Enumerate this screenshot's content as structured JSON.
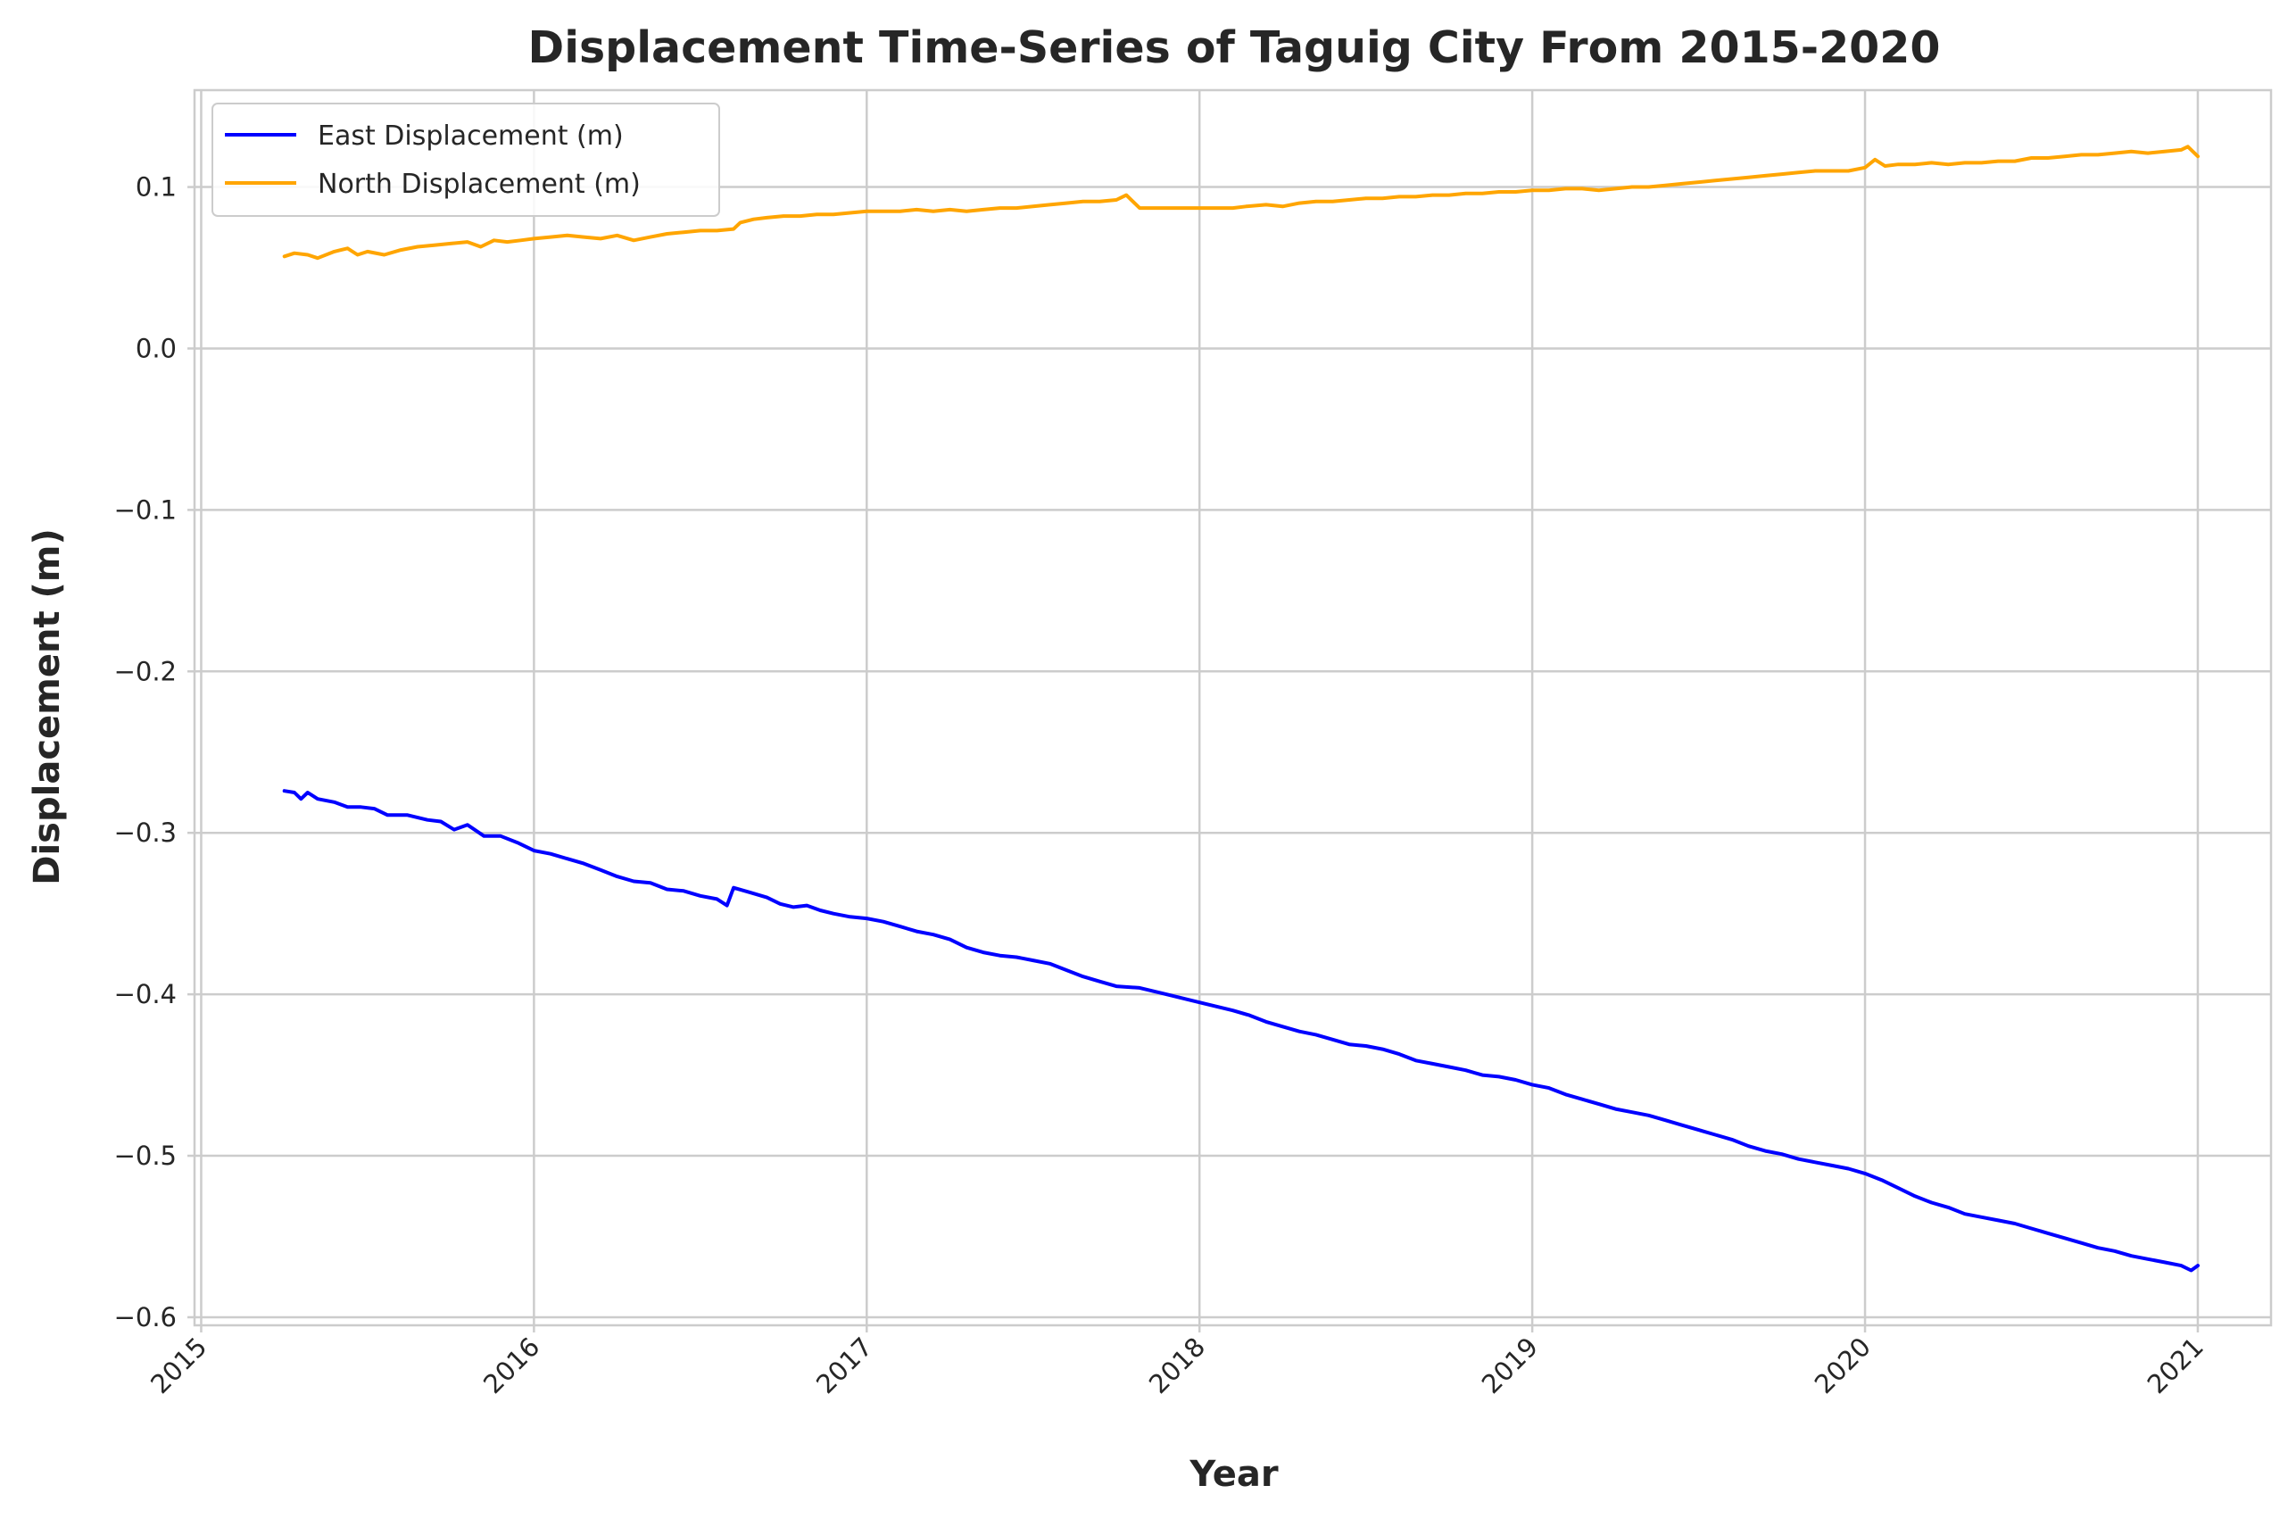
{
  "chart_data": {
    "type": "line",
    "title": "Displacement Time-Series of Taguig City From 2015-2020",
    "xlabel": "Year",
    "ylabel": "Displacement (m)",
    "xlim": [
      2014.98,
      2021.22
    ],
    "ylim": [
      -0.605,
      0.16
    ],
    "x_ticks": [
      2015,
      2016,
      2017,
      2018,
      2019,
      2020,
      2021
    ],
    "x_tick_labels": [
      "2015",
      "2016",
      "2017",
      "2018",
      "2019",
      "2020",
      "2021"
    ],
    "y_ticks": [
      0.1,
      0.0,
      -0.1,
      -0.2,
      -0.3,
      -0.4,
      -0.5,
      -0.6
    ],
    "y_tick_labels": [
      "0.1",
      "0.0",
      "−0.1",
      "−0.2",
      "−0.3",
      "−0.4",
      "−0.5",
      "−0.6"
    ],
    "grid": true,
    "legend_position": "top-left",
    "series": [
      {
        "name": "East Displacement (m)",
        "color": "#0000ff",
        "points": [
          [
            2015.25,
            -0.274
          ],
          [
            2015.28,
            -0.275
          ],
          [
            2015.3,
            -0.279
          ],
          [
            2015.32,
            -0.275
          ],
          [
            2015.35,
            -0.279
          ],
          [
            2015.4,
            -0.281
          ],
          [
            2015.44,
            -0.284
          ],
          [
            2015.48,
            -0.284
          ],
          [
            2015.52,
            -0.285
          ],
          [
            2015.56,
            -0.289
          ],
          [
            2015.62,
            -0.289
          ],
          [
            2015.68,
            -0.292
          ],
          [
            2015.72,
            -0.293
          ],
          [
            2015.76,
            -0.298
          ],
          [
            2015.8,
            -0.295
          ],
          [
            2015.85,
            -0.302
          ],
          [
            2015.9,
            -0.302
          ],
          [
            2015.95,
            -0.306
          ],
          [
            2016.0,
            -0.311
          ],
          [
            2016.05,
            -0.313
          ],
          [
            2016.1,
            -0.316
          ],
          [
            2016.15,
            -0.319
          ],
          [
            2016.2,
            -0.323
          ],
          [
            2016.25,
            -0.327
          ],
          [
            2016.3,
            -0.33
          ],
          [
            2016.35,
            -0.331
          ],
          [
            2016.4,
            -0.335
          ],
          [
            2016.45,
            -0.336
          ],
          [
            2016.5,
            -0.339
          ],
          [
            2016.55,
            -0.341
          ],
          [
            2016.58,
            -0.345
          ],
          [
            2016.6,
            -0.334
          ],
          [
            2016.65,
            -0.337
          ],
          [
            2016.7,
            -0.34
          ],
          [
            2016.74,
            -0.344
          ],
          [
            2016.78,
            -0.346
          ],
          [
            2016.82,
            -0.345
          ],
          [
            2016.86,
            -0.348
          ],
          [
            2016.9,
            -0.35
          ],
          [
            2016.95,
            -0.352
          ],
          [
            2017.0,
            -0.353
          ],
          [
            2017.05,
            -0.355
          ],
          [
            2017.1,
            -0.358
          ],
          [
            2017.15,
            -0.361
          ],
          [
            2017.2,
            -0.363
          ],
          [
            2017.25,
            -0.366
          ],
          [
            2017.3,
            -0.371
          ],
          [
            2017.35,
            -0.374
          ],
          [
            2017.4,
            -0.376
          ],
          [
            2017.45,
            -0.377
          ],
          [
            2017.5,
            -0.379
          ],
          [
            2017.55,
            -0.381
          ],
          [
            2017.6,
            -0.385
          ],
          [
            2017.65,
            -0.389
          ],
          [
            2017.7,
            -0.392
          ],
          [
            2017.75,
            -0.395
          ],
          [
            2017.82,
            -0.396
          ],
          [
            2017.9,
            -0.4
          ],
          [
            2018.0,
            -0.405
          ],
          [
            2018.1,
            -0.41
          ],
          [
            2018.15,
            -0.413
          ],
          [
            2018.2,
            -0.417
          ],
          [
            2018.25,
            -0.42
          ],
          [
            2018.3,
            -0.423
          ],
          [
            2018.35,
            -0.425
          ],
          [
            2018.4,
            -0.428
          ],
          [
            2018.45,
            -0.431
          ],
          [
            2018.5,
            -0.432
          ],
          [
            2018.55,
            -0.434
          ],
          [
            2018.6,
            -0.437
          ],
          [
            2018.65,
            -0.441
          ],
          [
            2018.7,
            -0.443
          ],
          [
            2018.75,
            -0.445
          ],
          [
            2018.8,
            -0.447
          ],
          [
            2018.85,
            -0.45
          ],
          [
            2018.9,
            -0.451
          ],
          [
            2018.95,
            -0.453
          ],
          [
            2019.0,
            -0.456
          ],
          [
            2019.05,
            -0.458
          ],
          [
            2019.1,
            -0.462
          ],
          [
            2019.15,
            -0.465
          ],
          [
            2019.2,
            -0.468
          ],
          [
            2019.25,
            -0.471
          ],
          [
            2019.3,
            -0.473
          ],
          [
            2019.35,
            -0.475
          ],
          [
            2019.4,
            -0.478
          ],
          [
            2019.45,
            -0.481
          ],
          [
            2019.5,
            -0.484
          ],
          [
            2019.55,
            -0.487
          ],
          [
            2019.6,
            -0.49
          ],
          [
            2019.65,
            -0.494
          ],
          [
            2019.7,
            -0.497
          ],
          [
            2019.75,
            -0.499
          ],
          [
            2019.8,
            -0.502
          ],
          [
            2019.85,
            -0.504
          ],
          [
            2019.9,
            -0.506
          ],
          [
            2019.95,
            -0.508
          ],
          [
            2020.0,
            -0.511
          ],
          [
            2020.05,
            -0.515
          ],
          [
            2020.1,
            -0.52
          ],
          [
            2020.15,
            -0.525
          ],
          [
            2020.2,
            -0.529
          ],
          [
            2020.25,
            -0.532
          ],
          [
            2020.3,
            -0.536
          ],
          [
            2020.35,
            -0.538
          ],
          [
            2020.4,
            -0.54
          ],
          [
            2020.45,
            -0.542
          ],
          [
            2020.5,
            -0.545
          ],
          [
            2020.55,
            -0.548
          ],
          [
            2020.6,
            -0.551
          ],
          [
            2020.65,
            -0.554
          ],
          [
            2020.7,
            -0.557
          ],
          [
            2020.75,
            -0.559
          ],
          [
            2020.8,
            -0.562
          ],
          [
            2020.85,
            -0.564
          ],
          [
            2020.9,
            -0.566
          ],
          [
            2020.95,
            -0.568
          ],
          [
            2020.98,
            -0.571
          ],
          [
            2021.0,
            -0.568
          ]
        ]
      },
      {
        "name": "North Displacement (m)",
        "color": "#ffa500",
        "points": [
          [
            2015.25,
            0.057
          ],
          [
            2015.28,
            0.059
          ],
          [
            2015.32,
            0.058
          ],
          [
            2015.35,
            0.056
          ],
          [
            2015.4,
            0.06
          ],
          [
            2015.44,
            0.062
          ],
          [
            2015.47,
            0.058
          ],
          [
            2015.5,
            0.06
          ],
          [
            2015.55,
            0.058
          ],
          [
            2015.6,
            0.061
          ],
          [
            2015.65,
            0.063
          ],
          [
            2015.7,
            0.064
          ],
          [
            2015.75,
            0.065
          ],
          [
            2015.8,
            0.066
          ],
          [
            2015.84,
            0.063
          ],
          [
            2015.88,
            0.067
          ],
          [
            2015.92,
            0.066
          ],
          [
            2015.96,
            0.067
          ],
          [
            2016.0,
            0.068
          ],
          [
            2016.05,
            0.069
          ],
          [
            2016.1,
            0.07
          ],
          [
            2016.15,
            0.069
          ],
          [
            2016.2,
            0.068
          ],
          [
            2016.25,
            0.07
          ],
          [
            2016.3,
            0.067
          ],
          [
            2016.35,
            0.069
          ],
          [
            2016.4,
            0.071
          ],
          [
            2016.45,
            0.072
          ],
          [
            2016.5,
            0.073
          ],
          [
            2016.55,
            0.073
          ],
          [
            2016.6,
            0.074
          ],
          [
            2016.62,
            0.078
          ],
          [
            2016.66,
            0.08
          ],
          [
            2016.7,
            0.081
          ],
          [
            2016.75,
            0.082
          ],
          [
            2016.8,
            0.082
          ],
          [
            2016.85,
            0.083
          ],
          [
            2016.9,
            0.083
          ],
          [
            2016.95,
            0.084
          ],
          [
            2017.0,
            0.085
          ],
          [
            2017.05,
            0.085
          ],
          [
            2017.1,
            0.085
          ],
          [
            2017.15,
            0.086
          ],
          [
            2017.2,
            0.085
          ],
          [
            2017.25,
            0.086
          ],
          [
            2017.3,
            0.085
          ],
          [
            2017.35,
            0.086
          ],
          [
            2017.4,
            0.087
          ],
          [
            2017.45,
            0.087
          ],
          [
            2017.5,
            0.088
          ],
          [
            2017.55,
            0.089
          ],
          [
            2017.6,
            0.09
          ],
          [
            2017.65,
            0.091
          ],
          [
            2017.7,
            0.091
          ],
          [
            2017.75,
            0.092
          ],
          [
            2017.78,
            0.095
          ],
          [
            2017.82,
            0.087
          ],
          [
            2017.9,
            0.087
          ],
          [
            2018.0,
            0.087
          ],
          [
            2018.1,
            0.087
          ],
          [
            2018.14,
            0.088
          ],
          [
            2018.2,
            0.089
          ],
          [
            2018.25,
            0.088
          ],
          [
            2018.3,
            0.09
          ],
          [
            2018.35,
            0.091
          ],
          [
            2018.4,
            0.091
          ],
          [
            2018.45,
            0.092
          ],
          [
            2018.5,
            0.093
          ],
          [
            2018.55,
            0.093
          ],
          [
            2018.6,
            0.094
          ],
          [
            2018.65,
            0.094
          ],
          [
            2018.7,
            0.095
          ],
          [
            2018.75,
            0.095
          ],
          [
            2018.8,
            0.096
          ],
          [
            2018.85,
            0.096
          ],
          [
            2018.9,
            0.097
          ],
          [
            2018.95,
            0.097
          ],
          [
            2019.0,
            0.098
          ],
          [
            2019.05,
            0.098
          ],
          [
            2019.1,
            0.099
          ],
          [
            2019.15,
            0.099
          ],
          [
            2019.2,
            0.098
          ],
          [
            2019.25,
            0.099
          ],
          [
            2019.3,
            0.1
          ],
          [
            2019.35,
            0.1
          ],
          [
            2019.4,
            0.101
          ],
          [
            2019.45,
            0.102
          ],
          [
            2019.5,
            0.103
          ],
          [
            2019.55,
            0.104
          ],
          [
            2019.6,
            0.105
          ],
          [
            2019.65,
            0.106
          ],
          [
            2019.7,
            0.107
          ],
          [
            2019.75,
            0.108
          ],
          [
            2019.8,
            0.109
          ],
          [
            2019.85,
            0.11
          ],
          [
            2019.9,
            0.11
          ],
          [
            2019.95,
            0.11
          ],
          [
            2020.0,
            0.112
          ],
          [
            2020.03,
            0.117
          ],
          [
            2020.06,
            0.113
          ],
          [
            2020.1,
            0.114
          ],
          [
            2020.15,
            0.114
          ],
          [
            2020.2,
            0.115
          ],
          [
            2020.25,
            0.114
          ],
          [
            2020.3,
            0.115
          ],
          [
            2020.35,
            0.115
          ],
          [
            2020.4,
            0.116
          ],
          [
            2020.45,
            0.116
          ],
          [
            2020.5,
            0.118
          ],
          [
            2020.55,
            0.118
          ],
          [
            2020.6,
            0.119
          ],
          [
            2020.65,
            0.12
          ],
          [
            2020.7,
            0.12
          ],
          [
            2020.75,
            0.121
          ],
          [
            2020.8,
            0.122
          ],
          [
            2020.85,
            0.121
          ],
          [
            2020.9,
            0.122
          ],
          [
            2020.95,
            0.123
          ],
          [
            2020.97,
            0.125
          ],
          [
            2021.0,
            0.119
          ]
        ]
      }
    ]
  }
}
